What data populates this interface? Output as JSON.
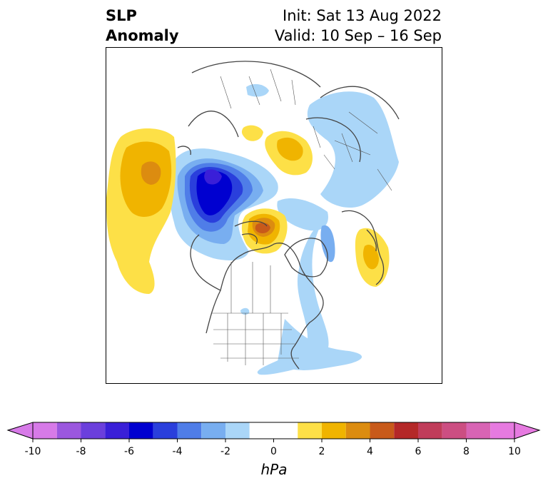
{
  "title": {
    "left_line1": "SLP",
    "left_line2": "Anomaly",
    "init": "Init: Sat 13 Aug 2022",
    "valid": "Valid: 10 Sep – 16 Sep"
  },
  "map": {
    "projection": "north-polar-stereographic",
    "region": "North America / Arctic / Eurasia"
  },
  "colorbar": {
    "unit": "hPa",
    "extend": "both",
    "ticks": [
      "-10",
      "-8",
      "-6",
      "-4",
      "-2",
      "0",
      "2",
      "4",
      "6",
      "8",
      "10"
    ],
    "levels": [
      -10,
      -9,
      -8,
      -7,
      -6,
      -5,
      -4,
      -3,
      -2,
      -1,
      1,
      2,
      3,
      4,
      5,
      6,
      7,
      8,
      9,
      10
    ],
    "colors": {
      "under": "#d77ae8",
      "over": "#e67ae0",
      "neg": [
        "#d77ae8",
        "#9b57df",
        "#6b3fdc",
        "#3a1fd8",
        "#0000d0",
        "#2a3fdc",
        "#4f7de8",
        "#78aef0",
        "#aad6f8"
      ],
      "zero": "#ffffff",
      "pos": [
        "#fde047",
        "#f0b400",
        "#dc8c10",
        "#c85a1a",
        "#b42828",
        "#c03c5a",
        "#cc4e82",
        "#d864b4",
        "#e67ae0"
      ]
    }
  }
}
